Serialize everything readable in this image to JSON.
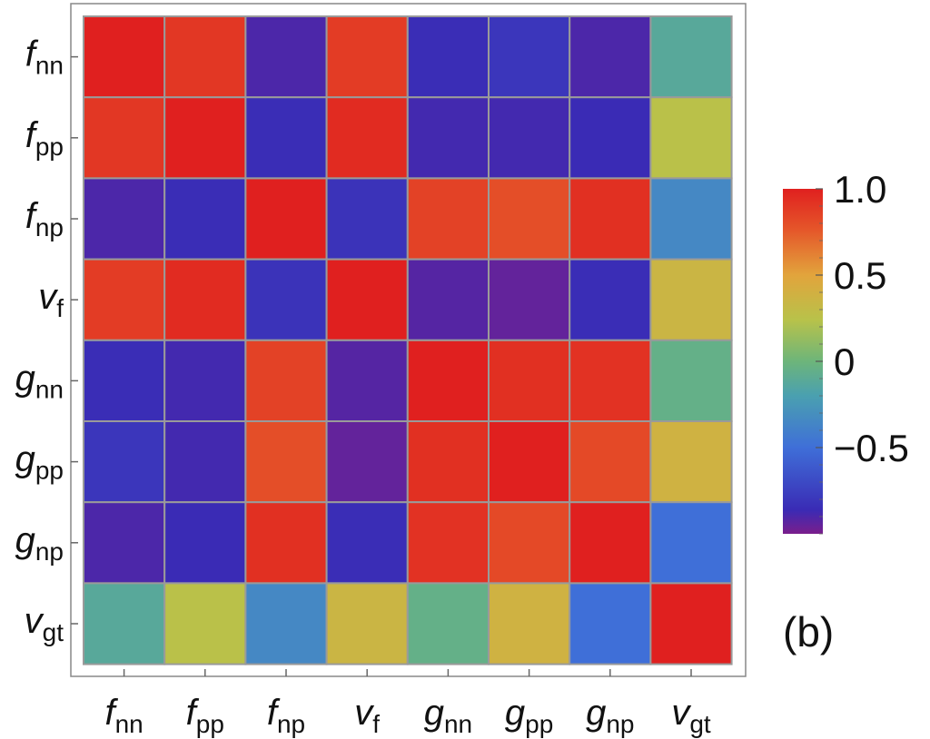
{
  "chart_data": {
    "type": "heatmap",
    "title": "",
    "xlabel": "",
    "ylabel": "",
    "variables": [
      {
        "base": "f",
        "sub": "nn"
      },
      {
        "base": "f",
        "sub": "pp"
      },
      {
        "base": "f",
        "sub": "np"
      },
      {
        "base": "v",
        "sub": "f"
      },
      {
        "base": "g",
        "sub": "nn"
      },
      {
        "base": "g",
        "sub": "pp"
      },
      {
        "base": "g",
        "sub": "np"
      },
      {
        "base": "v",
        "sub": "gt"
      }
    ],
    "matrix": [
      [
        1.0,
        0.9,
        -0.9,
        0.88,
        -0.85,
        -0.8,
        -0.9,
        -0.12
      ],
      [
        0.9,
        1.0,
        -0.85,
        0.95,
        -0.88,
        -0.88,
        -0.86,
        0.25
      ],
      [
        -0.9,
        -0.85,
        1.0,
        -0.82,
        0.85,
        0.8,
        0.93,
        -0.35
      ],
      [
        0.88,
        0.95,
        -0.82,
        1.0,
        -0.92,
        -0.95,
        -0.85,
        0.35
      ],
      [
        -0.85,
        -0.88,
        0.85,
        -0.92,
        1.0,
        0.93,
        0.92,
        -0.05
      ],
      [
        -0.8,
        -0.88,
        0.8,
        -0.95,
        0.93,
        1.0,
        0.82,
        0.38
      ],
      [
        -0.9,
        -0.86,
        0.93,
        -0.85,
        0.92,
        0.82,
        1.0,
        -0.5
      ],
      [
        -0.12,
        0.25,
        -0.35,
        0.35,
        -0.05,
        0.38,
        -0.5,
        1.0
      ]
    ],
    "colorbar": {
      "range": [
        -1,
        1
      ],
      "tick_labels": [
        "1.0",
        "0.5",
        "0",
        "−0.5"
      ],
      "tick_values": [
        1.0,
        0.5,
        0,
        -0.5
      ]
    },
    "panel_label": "(b)",
    "grid": false
  }
}
